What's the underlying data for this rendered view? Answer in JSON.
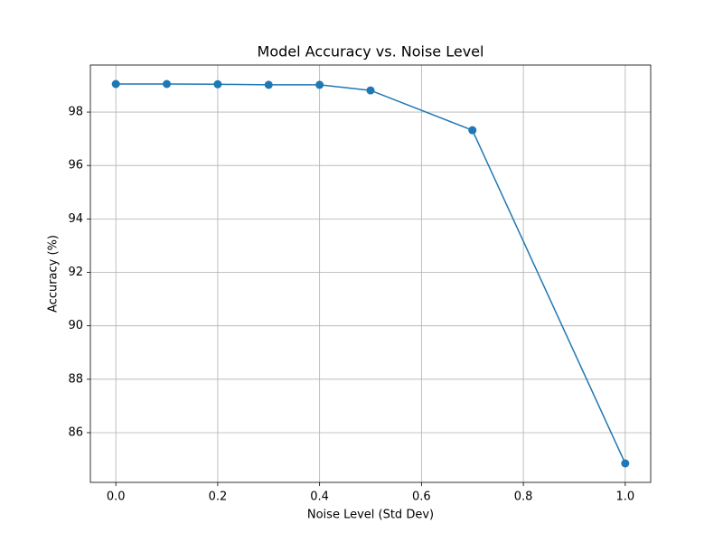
{
  "chart_data": {
    "type": "line",
    "title": "Model Accuracy vs. Noise Level",
    "x_label": "Noise Level (Std Dev)",
    "y_label": "Accuracy (%)",
    "x": [
      0,
      0.1,
      0.2,
      0.3,
      0.4,
      0.5,
      0.7,
      1.0
    ],
    "series": [
      {
        "color": "#1f77b4",
        "values": [
          99.05,
          99.05,
          99.04,
          99.02,
          99.02,
          98.81,
          97.32,
          84.85
        ]
      }
    ],
    "xlim": [
      -0.05,
      1.05
    ],
    "xticks": [
      {
        "value": 0,
        "label": "0.0"
      },
      0.2,
      0.4,
      0.6,
      0.8,
      {
        "value": 1,
        "label": "1.0"
      }
    ],
    "ylim": [
      84.14,
      99.76
    ],
    "yticks": [
      86,
      88,
      90,
      92,
      94,
      96,
      98
    ],
    "grid": true
  }
}
